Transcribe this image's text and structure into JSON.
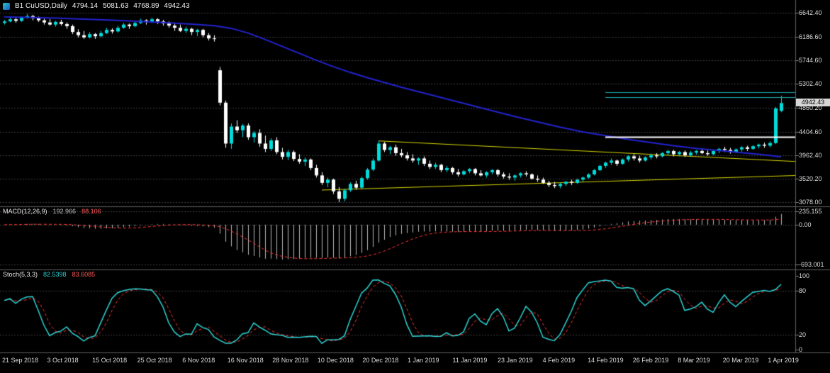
{
  "title_bar": {
    "symbol": "B1 CuUSD,Daily",
    "open": "4794.14",
    "high": "5081.63",
    "low": "4768.89",
    "close": "4942.43"
  },
  "colors": {
    "background": "#000000",
    "bull": "#00dcdc",
    "bear": "#ffffff",
    "ma_line": "#2323cf",
    "trendline": "#d8d800",
    "level_teal": "#1ba8a8",
    "level_white": "#ffffff",
    "macd_histogram": "#b8b8b8",
    "macd_signal": "#ff3333",
    "stoch_main": "#2bd4d4",
    "stoch_signal": "#ff3333",
    "grid": "#3d3d3d",
    "separator": "#5f5f5f",
    "axis_text": "#dcdcdc",
    "tag_bg": "#d6d6d6",
    "tag_text": "#000000"
  },
  "main_pane": {
    "price_tag": "4942.43"
  },
  "macd_pane": {
    "name": "MACD(12,26,9)",
    "value_main": "192.966",
    "value_signal": "88.106",
    "axis_labels": [
      "235.155",
      "0.00",
      "-693.001"
    ],
    "axis_levels": [
      235.155,
      0,
      -693.001
    ],
    "params": {
      "fast": 12,
      "slow": 26,
      "signal": 9
    }
  },
  "stoch_pane": {
    "name": "Stoch(5,3,3)",
    "value_k": "82.5398",
    "value_d": "83.6085",
    "axis_levels": [
      100,
      80,
      20,
      0
    ],
    "dashed_levels": [
      80,
      20
    ],
    "params": {
      "k": 5,
      "d": 3,
      "slowing": 3
    }
  },
  "chart_data": {
    "type": "candlestick",
    "symbol": "CuUSD",
    "timeframe": "Daily",
    "title": "B1 CuUSD,Daily",
    "last_ohlc": [
      4794.14,
      5081.63,
      4768.89,
      4942.43
    ],
    "ylim": [
      3078.0,
      6642.4
    ],
    "y_ticks": [
      6642.4,
      6186.6,
      5744.6,
      5302.4,
      4860.2,
      4404.6,
      3962.4,
      3520.2,
      3078.0
    ],
    "x_labels": [
      "21 Sep 2018",
      "3 Oct 2018",
      "15 Oct 2018",
      "25 Oct 2018",
      "6 Nov 2018",
      "16 Nov 2018",
      "28 Nov 2018",
      "10 Dec 2018",
      "20 Dec 2018",
      "1 Jan 2019",
      "11 Jan 2019",
      "23 Jan 2019",
      "4 Feb 2019",
      "14 Feb 2019",
      "26 Feb 2019",
      "8 Mar 2019",
      "20 Mar 2019",
      "1 Apr 2019"
    ],
    "candles": [
      [
        6450,
        6510,
        6420,
        6480
      ],
      [
        6480,
        6560,
        6460,
        6520
      ],
      [
        6520,
        6545,
        6455,
        6490
      ],
      [
        6490,
        6575,
        6470,
        6550
      ],
      [
        6550,
        6620,
        6530,
        6580
      ],
      [
        6580,
        6605,
        6500,
        6540
      ],
      [
        6540,
        6570,
        6470,
        6500
      ],
      [
        6500,
        6530,
        6420,
        6460
      ],
      [
        6460,
        6520,
        6400,
        6420
      ],
      [
        6420,
        6490,
        6380,
        6470
      ],
      [
        6470,
        6510,
        6400,
        6430
      ],
      [
        6430,
        6460,
        6340,
        6390
      ],
      [
        6390,
        6420,
        6240,
        6280
      ],
      [
        6280,
        6330,
        6180,
        6220
      ],
      [
        6220,
        6300,
        6150,
        6180
      ],
      [
        6180,
        6280,
        6160,
        6240
      ],
      [
        6240,
        6260,
        6150,
        6200
      ],
      [
        6200,
        6300,
        6180,
        6260
      ],
      [
        6260,
        6360,
        6240,
        6320
      ],
      [
        6320,
        6350,
        6250,
        6290
      ],
      [
        6290,
        6400,
        6270,
        6360
      ],
      [
        6360,
        6450,
        6340,
        6420
      ],
      [
        6420,
        6440,
        6340,
        6390
      ],
      [
        6390,
        6480,
        6370,
        6450
      ],
      [
        6450,
        6530,
        6430,
        6500
      ],
      [
        6500,
        6520,
        6420,
        6470
      ],
      [
        6470,
        6550,
        6450,
        6520
      ],
      [
        6520,
        6540,
        6430,
        6480
      ],
      [
        6480,
        6510,
        6400,
        6440
      ],
      [
        6440,
        6480,
        6360,
        6400
      ],
      [
        6400,
        6440,
        6300,
        6360
      ],
      [
        6360,
        6420,
        6280,
        6300
      ],
      [
        6300,
        6380,
        6260,
        6340
      ],
      [
        6340,
        6360,
        6220,
        6280
      ],
      [
        6280,
        6340,
        6200,
        6320
      ],
      [
        6320,
        6340,
        6180,
        6220
      ],
      [
        6220,
        6260,
        6120,
        6160
      ],
      [
        6160,
        6220,
        6100,
        6150
      ],
      [
        5560,
        5620,
        4900,
        4950
      ],
      [
        4950,
        4990,
        4100,
        4180
      ],
      [
        4180,
        4560,
        4080,
        4500
      ],
      [
        4500,
        4620,
        4380,
        4430
      ],
      [
        4430,
        4550,
        4300,
        4520
      ],
      [
        4520,
        4560,
        4250,
        4300
      ],
      [
        4300,
        4420,
        4200,
        4380
      ],
      [
        4380,
        4450,
        4120,
        4180
      ],
      [
        4180,
        4330,
        4020,
        4080
      ],
      [
        4080,
        4280,
        4040,
        4240
      ],
      [
        4240,
        4300,
        3980,
        4020
      ],
      [
        4020,
        4100,
        3880,
        3930
      ],
      [
        3930,
        4060,
        3870,
        4020
      ],
      [
        4020,
        4050,
        3850,
        3890
      ],
      [
        3890,
        3980,
        3800,
        3840
      ],
      [
        3840,
        3920,
        3760,
        3880
      ],
      [
        3880,
        3900,
        3680,
        3720
      ],
      [
        3720,
        3780,
        3540,
        3580
      ],
      [
        3580,
        3640,
        3400,
        3440
      ],
      [
        3440,
        3540,
        3360,
        3500
      ],
      [
        3500,
        3520,
        3230,
        3280
      ],
      [
        3280,
        3360,
        3078,
        3140
      ],
      [
        3140,
        3330,
        3090,
        3300
      ],
      [
        3300,
        3450,
        3270,
        3420
      ],
      [
        3420,
        3480,
        3310,
        3350
      ],
      [
        3350,
        3560,
        3330,
        3530
      ],
      [
        3530,
        3720,
        3500,
        3690
      ],
      [
        3690,
        3900,
        3660,
        3860
      ],
      [
        3860,
        4230,
        3840,
        4180
      ],
      [
        4180,
        4210,
        4020,
        4060
      ],
      [
        4060,
        4140,
        3980,
        4110
      ],
      [
        4110,
        4160,
        3950,
        4000
      ],
      [
        4000,
        4080,
        3920,
        3960
      ],
      [
        3960,
        4020,
        3860,
        3900
      ],
      [
        3900,
        3980,
        3820,
        3860
      ],
      [
        3860,
        3920,
        3780,
        3900
      ],
      [
        3900,
        3940,
        3760,
        3800
      ],
      [
        3800,
        3860,
        3700,
        3740
      ],
      [
        3740,
        3820,
        3700,
        3780
      ],
      [
        3780,
        3800,
        3640,
        3680
      ],
      [
        3680,
        3760,
        3640,
        3720
      ],
      [
        3720,
        3740,
        3600,
        3640
      ],
      [
        3640,
        3700,
        3560,
        3600
      ],
      [
        3600,
        3680,
        3580,
        3660
      ],
      [
        3660,
        3720,
        3620,
        3700
      ],
      [
        3700,
        3720,
        3580,
        3620
      ],
      [
        3620,
        3680,
        3560,
        3580
      ],
      [
        3580,
        3660,
        3540,
        3640
      ],
      [
        3640,
        3700,
        3600,
        3680
      ],
      [
        3680,
        3700,
        3560,
        3600
      ],
      [
        3600,
        3640,
        3520,
        3560
      ],
      [
        3560,
        3620,
        3500,
        3540
      ],
      [
        3540,
        3600,
        3480,
        3580
      ],
      [
        3580,
        3640,
        3540,
        3620
      ],
      [
        3620,
        3660,
        3560,
        3600
      ],
      [
        3600,
        3620,
        3500,
        3520
      ],
      [
        3520,
        3580,
        3460,
        3500
      ],
      [
        3500,
        3540,
        3420,
        3440
      ],
      [
        3440,
        3480,
        3360,
        3400
      ],
      [
        3400,
        3460,
        3340,
        3380
      ],
      [
        3380,
        3440,
        3340,
        3420
      ],
      [
        3420,
        3480,
        3380,
        3460
      ],
      [
        3460,
        3500,
        3400,
        3440
      ],
      [
        3440,
        3520,
        3420,
        3500
      ],
      [
        3500,
        3560,
        3460,
        3540
      ],
      [
        3540,
        3620,
        3520,
        3600
      ],
      [
        3600,
        3700,
        3580,
        3680
      ],
      [
        3680,
        3780,
        3660,
        3760
      ],
      [
        3760,
        3840,
        3720,
        3820
      ],
      [
        3820,
        3900,
        3780,
        3860
      ],
      [
        3860,
        3880,
        3760,
        3800
      ],
      [
        3800,
        3900,
        3780,
        3880
      ],
      [
        3880,
        3960,
        3840,
        3940
      ],
      [
        3940,
        3980,
        3860,
        3900
      ],
      [
        3900,
        3950,
        3820,
        3860
      ],
      [
        3860,
        3940,
        3840,
        3920
      ],
      [
        3920,
        3990,
        3880,
        3960
      ],
      [
        3960,
        4000,
        3900,
        3940
      ],
      [
        3940,
        4020,
        3920,
        4000
      ],
      [
        4000,
        4060,
        3960,
        4040
      ],
      [
        4040,
        4060,
        3940,
        3980
      ],
      [
        3980,
        4040,
        3940,
        4020
      ],
      [
        4020,
        4050,
        3930,
        3960
      ],
      [
        3960,
        4040,
        3940,
        4010
      ],
      [
        4010,
        4060,
        3970,
        4040
      ],
      [
        4040,
        4080,
        3980,
        4000
      ],
      [
        4000,
        4050,
        3950,
        3980
      ],
      [
        3980,
        4060,
        3960,
        4040
      ],
      [
        4040,
        4100,
        4000,
        4080
      ],
      [
        4080,
        4120,
        4020,
        4060
      ],
      [
        4060,
        4100,
        3990,
        4020
      ],
      [
        4020,
        4090,
        4000,
        4070
      ],
      [
        4070,
        4130,
        4030,
        4110
      ],
      [
        4110,
        4140,
        4040,
        4080
      ],
      [
        4080,
        4150,
        4060,
        4130
      ],
      [
        4130,
        4180,
        4090,
        4160
      ],
      [
        4160,
        4200,
        4100,
        4140
      ],
      [
        4140,
        4220,
        4110,
        4190
      ],
      [
        4190,
        4870,
        4170,
        4840
      ],
      [
        4794.14,
        5081.63,
        4768.89,
        4942.43
      ]
    ],
    "overlays": {
      "ma_blue_points": [
        [
          0,
          6565
        ],
        [
          10,
          6540
        ],
        [
          20,
          6500
        ],
        [
          28,
          6460
        ],
        [
          33,
          6430
        ],
        [
          37,
          6400
        ],
        [
          40,
          6350
        ],
        [
          43,
          6260
        ],
        [
          46,
          6140
        ],
        [
          49,
          6010
        ],
        [
          52,
          5880
        ],
        [
          55,
          5750
        ],
        [
          58,
          5630
        ],
        [
          61,
          5520
        ],
        [
          64,
          5420
        ],
        [
          67,
          5330
        ],
        [
          70,
          5240
        ],
        [
          74,
          5130
        ],
        [
          78,
          5020
        ],
        [
          82,
          4910
        ],
        [
          86,
          4800
        ],
        [
          90,
          4690
        ],
        [
          94,
          4590
        ],
        [
          98,
          4490
        ],
        [
          102,
          4400
        ],
        [
          106,
          4330
        ],
        [
          110,
          4260
        ],
        [
          114,
          4200
        ],
        [
          118,
          4140
        ],
        [
          122,
          4090
        ],
        [
          126,
          4050
        ],
        [
          130,
          4010
        ],
        [
          133,
          3980
        ],
        [
          135,
          3955
        ],
        [
          137,
          3930
        ]
      ],
      "trendlines": [
        {
          "name": "descending-resistance",
          "from": [
            66,
            4230
          ],
          "to": [
            140,
            3840
          ]
        },
        {
          "name": "ascending-support",
          "from": [
            56,
            3305
          ],
          "to": [
            140,
            3580
          ]
        }
      ],
      "hlines": [
        {
          "name": "resistance-level-1",
          "price": 5150,
          "from_index": 106,
          "style": "teal"
        },
        {
          "name": "resistance-level-2",
          "price": 5060,
          "from_index": 106,
          "style": "teal"
        },
        {
          "name": "breakout-level",
          "price": 4300,
          "from_index": 106,
          "style": "white"
        }
      ]
    }
  }
}
